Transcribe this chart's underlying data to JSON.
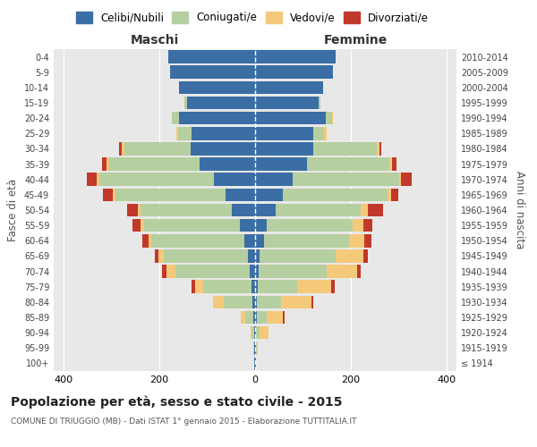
{
  "age_groups": [
    "100+",
    "95-99",
    "90-94",
    "85-89",
    "80-84",
    "75-79",
    "70-74",
    "65-69",
    "60-64",
    "55-59",
    "50-54",
    "45-49",
    "40-44",
    "35-39",
    "30-34",
    "25-29",
    "20-24",
    "15-19",
    "10-14",
    "5-9",
    "0-4"
  ],
  "birth_years": [
    "≤ 1914",
    "1915-1919",
    "1920-1924",
    "1925-1929",
    "1930-1934",
    "1935-1939",
    "1940-1944",
    "1945-1949",
    "1950-1954",
    "1955-1959",
    "1960-1964",
    "1965-1969",
    "1970-1974",
    "1975-1979",
    "1980-1984",
    "1985-1989",
    "1990-1994",
    "1995-1999",
    "2000-2004",
    "2005-2009",
    "2010-2014"
  ],
  "male_celibi": [
    1,
    1,
    1,
    3,
    5,
    8,
    12,
    15,
    22,
    32,
    48,
    62,
    85,
    115,
    135,
    132,
    158,
    142,
    158,
    178,
    182
  ],
  "male_coniugati": [
    0,
    2,
    5,
    18,
    60,
    100,
    155,
    175,
    195,
    200,
    190,
    230,
    240,
    190,
    138,
    28,
    15,
    5,
    0,
    0,
    0
  ],
  "male_vedovi": [
    0,
    0,
    3,
    8,
    22,
    18,
    18,
    12,
    6,
    6,
    6,
    5,
    5,
    5,
    5,
    5,
    0,
    0,
    0,
    0,
    0
  ],
  "male_divorziati": [
    0,
    0,
    0,
    0,
    0,
    6,
    10,
    8,
    12,
    18,
    22,
    20,
    20,
    10,
    5,
    0,
    0,
    0,
    0,
    0,
    0
  ],
  "female_nubili": [
    1,
    1,
    2,
    3,
    3,
    5,
    8,
    10,
    18,
    25,
    42,
    58,
    78,
    108,
    122,
    122,
    148,
    132,
    142,
    162,
    168
  ],
  "female_coniugate": [
    0,
    2,
    8,
    22,
    52,
    82,
    142,
    158,
    178,
    178,
    178,
    218,
    222,
    172,
    132,
    22,
    12,
    5,
    0,
    0,
    0
  ],
  "female_vedove": [
    0,
    2,
    18,
    32,
    62,
    72,
    62,
    58,
    32,
    22,
    16,
    8,
    5,
    5,
    5,
    5,
    2,
    0,
    0,
    0,
    0
  ],
  "female_divorziate": [
    0,
    0,
    0,
    5,
    5,
    8,
    8,
    10,
    15,
    20,
    30,
    15,
    22,
    10,
    5,
    0,
    0,
    0,
    0,
    0,
    0
  ],
  "colors_celibi": "#3a6ea5",
  "colors_coniugati": "#b5cfa0",
  "colors_vedovi": "#f5c97a",
  "colors_divorziati": "#c0392b",
  "xlim": 420,
  "title": "Popolazione per età, sesso e stato civile - 2015",
  "subtitle": "COMUNE DI TRIUGGIO (MB) - Dati ISTAT 1° gennaio 2015 - Elaborazione TUTTITALIA.IT",
  "xlabel_left": "Maschi",
  "xlabel_right": "Femmine",
  "ylabel_left": "Fasce di età",
  "ylabel_right": "Anni di nascita",
  "legend_labels": [
    "Celibi/Nubili",
    "Coniugati/e",
    "Vedovi/e",
    "Divorziati/e"
  ],
  "bg_color": "#ffffff",
  "plot_bg": "#e8e8e8"
}
